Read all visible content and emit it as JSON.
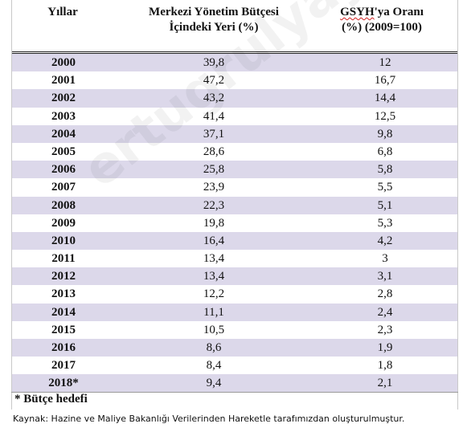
{
  "table": {
    "headers": {
      "col1": "Yıllar",
      "col2_line1": "Merkezi Yönetim Bütçesi",
      "col2_line2": "İçindeki Yeri (%)",
      "col3_line1_a": "GSYH",
      "col3_line1_b": "'ya Oranı",
      "col3_line2": "(%) (2009=100)"
    },
    "rows": [
      {
        "year": "2000",
        "budget_share": "39,8",
        "gdp_ratio": "12"
      },
      {
        "year": "2001",
        "budget_share": "47,2",
        "gdp_ratio": "16,7"
      },
      {
        "year": "2002",
        "budget_share": "43,2",
        "gdp_ratio": "14,4"
      },
      {
        "year": "2003",
        "budget_share": "41,4",
        "gdp_ratio": "12,5"
      },
      {
        "year": "2004",
        "budget_share": "37,1",
        "gdp_ratio": "9,8"
      },
      {
        "year": "2005",
        "budget_share": "28,6",
        "gdp_ratio": "6,8"
      },
      {
        "year": "2006",
        "budget_share": "25,8",
        "gdp_ratio": "5,8"
      },
      {
        "year": "2007",
        "budget_share": "23,9",
        "gdp_ratio": "5,5"
      },
      {
        "year": "2008",
        "budget_share": "22,3",
        "gdp_ratio": "5,1"
      },
      {
        "year": "2009",
        "budget_share": "19,8",
        "gdp_ratio": "5,3"
      },
      {
        "year": "2010",
        "budget_share": "16,4",
        "gdp_ratio": "4,2"
      },
      {
        "year": "2011",
        "budget_share": "13,4",
        "gdp_ratio": "3"
      },
      {
        "year": "2012",
        "budget_share": "13,4",
        "gdp_ratio": "3,1"
      },
      {
        "year": "2013",
        "budget_share": "12,2",
        "gdp_ratio": "2,8"
      },
      {
        "year": "2014",
        "budget_share": "11,1",
        "gdp_ratio": "2,4"
      },
      {
        "year": "2015",
        "budget_share": "10,5",
        "gdp_ratio": "2,3"
      },
      {
        "year": "2016",
        "budget_share": "8,6",
        "gdp_ratio": "1,9"
      },
      {
        "year": "2017",
        "budget_share": "8,4",
        "gdp_ratio": "1,8"
      },
      {
        "year": "2018*",
        "budget_share": "9,4",
        "gdp_ratio": "2,1"
      }
    ],
    "shade_color": "#dcd8ea"
  },
  "footnote": "* Bütçe hedefi",
  "source": "Kaynak: Hazine ve Maliye Bakanlığı Verilerinden Hareketle tarafımızdan oluşturulmuştur."
}
